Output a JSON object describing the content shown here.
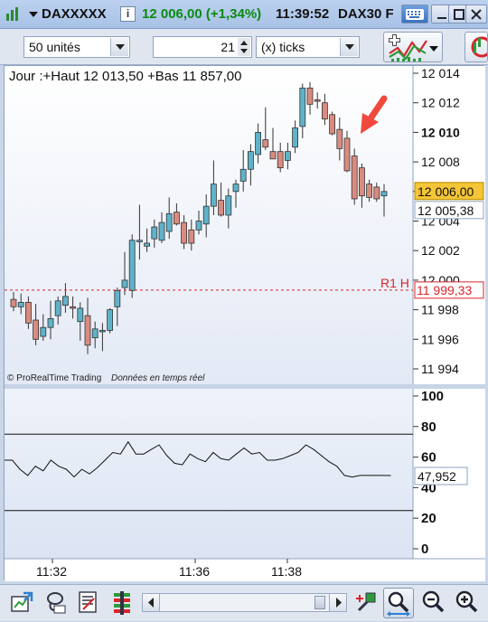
{
  "titlebar": {
    "symbol": "DAXXXXX",
    "info_icon": "i",
    "change": "12 006,00 (+1,34%)",
    "time": "11:39:52",
    "instrument": "DAX30 F",
    "colors": {
      "change": "#0a8a12"
    }
  },
  "toolbar": {
    "units_select": "50 unités",
    "ticks_value": "21",
    "ticks_unit_select": "(x) ticks"
  },
  "chart": {
    "header": "Jour :+Haut 12 013,50 +Bas 11 857,00",
    "watermark_brand": "© ProRealTime Trading",
    "watermark_realtime": "Données en temps réel",
    "price_ticks": [
      "12 014",
      "12 012",
      "12 010",
      "12 008",
      "12 006",
      "12 004",
      "12 002",
      "12 000",
      "11 998",
      "11 996",
      "11 994"
    ],
    "last_price_label": "12 006,00",
    "second_price_label": "12 005,38",
    "r1_label": "R1 H",
    "r1_value": "11 999,33",
    "time_ticks": [
      "11:32",
      "11:36",
      "11:38"
    ],
    "colors": {
      "bull": "#5fb3c9",
      "bear": "#d98b80",
      "r1": "#d9252b",
      "arrow": "#f0483d",
      "last_price_bg": "#f3c537"
    }
  },
  "oscillator": {
    "ticks": [
      "100",
      "80",
      "60",
      "40",
      "20",
      "0"
    ],
    "current_value": "47,952",
    "levels": [
      75,
      25
    ]
  },
  "chart_data": {
    "type": "candlestick",
    "x_time_labels": [
      "11:32",
      "11:36",
      "11:38"
    ],
    "ylim": [
      11993,
      12015
    ],
    "candles": [
      {
        "o": 11998.7,
        "h": 11999.2,
        "l": 11997.9,
        "c": 11998.2
      },
      {
        "o": 11998.2,
        "h": 11999.1,
        "l": 11997.7,
        "c": 11998.5
      },
      {
        "o": 11998.5,
        "h": 11998.9,
        "l": 11996.7,
        "c": 11997.1
      },
      {
        "o": 11997.3,
        "h": 11998.4,
        "l": 11995.6,
        "c": 11996.0
      },
      {
        "o": 11996.2,
        "h": 11997.7,
        "l": 11995.9,
        "c": 11996.8
      },
      {
        "o": 11996.8,
        "h": 11998.6,
        "l": 11996.0,
        "c": 11997.4
      },
      {
        "o": 11997.6,
        "h": 11998.9,
        "l": 11997.0,
        "c": 11998.6
      },
      {
        "o": 11998.3,
        "h": 11999.8,
        "l": 11997.8,
        "c": 11998.9
      },
      {
        "o": 11998.2,
        "h": 11998.9,
        "l": 11997.4,
        "c": 11998.1
      },
      {
        "o": 11997.2,
        "h": 11998.5,
        "l": 11995.9,
        "c": 11998.1
      },
      {
        "o": 11997.6,
        "h": 11998.8,
        "l": 11995.0,
        "c": 11995.6
      },
      {
        "o": 11996.1,
        "h": 11997.2,
        "l": 11995.4,
        "c": 11996.7
      },
      {
        "o": 11996.6,
        "h": 11997.1,
        "l": 11995.2,
        "c": 11996.6
      },
      {
        "o": 11996.6,
        "h": 11998.1,
        "l": 11996.4,
        "c": 11998.0
      },
      {
        "o": 11998.2,
        "h": 11999.5,
        "l": 11996.9,
        "c": 11999.3
      },
      {
        "o": 11999.5,
        "h": 12001.9,
        "l": 11999.0,
        "c": 12000.0
      },
      {
        "o": 11999.3,
        "h": 12003.1,
        "l": 11998.8,
        "c": 12002.7
      },
      {
        "o": 12002.6,
        "h": 12005.1,
        "l": 12001.4,
        "c": 12002.7
      },
      {
        "o": 12002.3,
        "h": 12003.5,
        "l": 12001.9,
        "c": 12002.5
      },
      {
        "o": 12002.8,
        "h": 12004.1,
        "l": 12002.2,
        "c": 12003.6
      },
      {
        "o": 12002.7,
        "h": 12004.6,
        "l": 12002.5,
        "c": 12003.9
      },
      {
        "o": 12003.3,
        "h": 12005.6,
        "l": 12002.8,
        "c": 12004.5
      },
      {
        "o": 12004.6,
        "h": 12005.2,
        "l": 12003.7,
        "c": 12003.8
      },
      {
        "o": 12003.9,
        "h": 12004.4,
        "l": 12002.1,
        "c": 12002.5
      },
      {
        "o": 12003.4,
        "h": 12004.1,
        "l": 12002.0,
        "c": 12002.5
      },
      {
        "o": 12003.4,
        "h": 12004.7,
        "l": 12003.1,
        "c": 12004.0
      },
      {
        "o": 12003.8,
        "h": 12005.8,
        "l": 12002.9,
        "c": 12005.0
      },
      {
        "o": 12005.0,
        "h": 12008.1,
        "l": 12004.4,
        "c": 12006.5
      },
      {
        "o": 12005.4,
        "h": 12006.6,
        "l": 12004.3,
        "c": 12004.4
      },
      {
        "o": 12004.4,
        "h": 12006.2,
        "l": 12003.5,
        "c": 12005.7
      },
      {
        "o": 12006.0,
        "h": 12006.8,
        "l": 12004.9,
        "c": 12006.5
      },
      {
        "o": 12006.7,
        "h": 12008.8,
        "l": 12006.0,
        "c": 12007.5
      },
      {
        "o": 12007.5,
        "h": 12009.2,
        "l": 12006.4,
        "c": 12008.7
      },
      {
        "o": 12008.5,
        "h": 12010.6,
        "l": 12007.9,
        "c": 12010.0
      },
      {
        "o": 12009.5,
        "h": 12011.7,
        "l": 12008.8,
        "c": 12009.0
      },
      {
        "o": 12008.7,
        "h": 12010.3,
        "l": 12008.2,
        "c": 12008.2
      },
      {
        "o": 12008.7,
        "h": 12009.3,
        "l": 12007.3,
        "c": 12007.6
      },
      {
        "o": 12008.1,
        "h": 12009.3,
        "l": 12007.5,
        "c": 12008.7
      },
      {
        "o": 12009.0,
        "h": 12010.8,
        "l": 12008.6,
        "c": 12010.3
      },
      {
        "o": 12010.4,
        "h": 12013.3,
        "l": 12009.6,
        "c": 12013.0
      },
      {
        "o": 12013.0,
        "h": 12013.4,
        "l": 12011.2,
        "c": 12011.9
      },
      {
        "o": 12012.2,
        "h": 12012.7,
        "l": 12011.6,
        "c": 12012.1
      },
      {
        "o": 12012.0,
        "h": 12012.6,
        "l": 12010.5,
        "c": 12010.9
      },
      {
        "o": 12011.2,
        "h": 12011.4,
        "l": 12009.8,
        "c": 12009.9
      },
      {
        "o": 12010.2,
        "h": 12011.0,
        "l": 12008.1,
        "c": 12008.9
      },
      {
        "o": 12009.6,
        "h": 12010.1,
        "l": 12007.3,
        "c": 12007.4
      },
      {
        "o": 12008.4,
        "h": 12008.9,
        "l": 12005.1,
        "c": 12005.5
      },
      {
        "o": 12007.6,
        "h": 12007.9,
        "l": 12004.9,
        "c": 12005.7
      },
      {
        "o": 12006.5,
        "h": 12006.8,
        "l": 12005.3,
        "c": 12005.6
      },
      {
        "o": 12006.3,
        "h": 12006.6,
        "l": 12005.3,
        "c": 12005.5
      },
      {
        "o": 12005.7,
        "h": 12006.5,
        "l": 12004.3,
        "c": 12006.0
      }
    ],
    "levels": {
      "r1": 11999.33,
      "last": 12006.0,
      "second": 12005.38
    },
    "oscillator": {
      "ylim": [
        0,
        100
      ],
      "values": [
        58,
        58,
        52,
        48,
        54,
        51,
        58,
        54,
        52,
        47,
        52,
        49,
        53,
        58,
        63,
        62,
        70,
        62,
        62,
        65,
        68,
        61,
        56,
        55,
        62,
        59,
        57,
        63,
        59,
        58,
        62,
        66,
        62,
        63,
        58,
        58,
        59,
        61,
        63,
        68,
        65,
        61,
        57,
        54,
        48,
        47,
        48,
        48,
        48,
        48,
        47.952
      ]
    }
  }
}
